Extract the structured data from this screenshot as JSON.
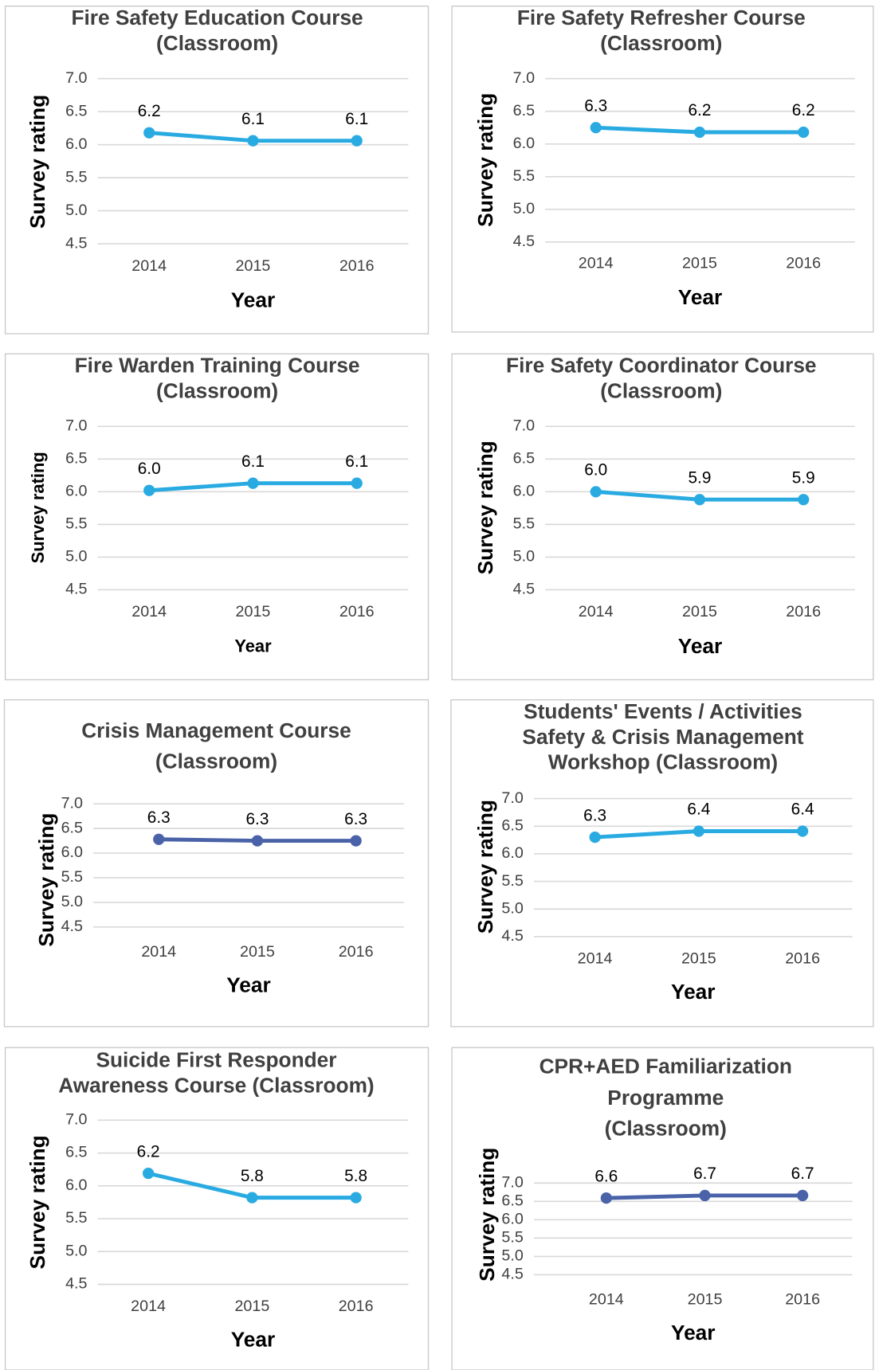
{
  "chart_data": [
    {
      "type": "line",
      "title": [
        "Fire Safety Education Course",
        "(Classroom)"
      ],
      "ylabel": "Survey rating",
      "xlabel": "Year",
      "categories": [
        "2014",
        "2015",
        "2016"
      ],
      "values": [
        6.18,
        6.06,
        6.06
      ],
      "value_labels": [
        "6.2",
        "6.1",
        "6.1"
      ],
      "color": "#29abe2",
      "ylim": [
        4.5,
        7.0
      ],
      "yticks": [
        4.5,
        {
          "value": 5,
          "label": "5.0"
        },
        5.5,
        {
          "value": 6,
          "label": "6.0"
        },
        6.5,
        {
          "value": 7,
          "label": "7.0"
        }
      ],
      "grid": true
    },
    {
      "type": "line",
      "title": [
        "Fire Safety Refresher Course",
        "(Classroom)"
      ],
      "ylabel": "Survey rating",
      "xlabel": "Year",
      "categories": [
        "2014",
        "2015",
        "2016"
      ],
      "values": [
        6.25,
        6.18,
        6.18
      ],
      "value_labels": [
        "6.3",
        "6.2",
        "6.2"
      ],
      "color": "#29abe2",
      "ylim": [
        4.5,
        7.0
      ],
      "yticks": [
        4.5,
        {
          "value": 5,
          "label": "5.0"
        },
        5.5,
        {
          "value": 6,
          "label": "6.0"
        },
        6.5,
        {
          "value": 7,
          "label": "7.0"
        }
      ],
      "grid": true
    },
    {
      "type": "line",
      "title": [
        "Fire Warden Training Course",
        "(Classroom)"
      ],
      "ylabel": "Survey rating",
      "xlabel": "Year",
      "categories": [
        "2014",
        "2015",
        "2016"
      ],
      "values": [
        6.02,
        6.13,
        6.13
      ],
      "value_labels": [
        "6.0",
        "6.1",
        "6.1"
      ],
      "color": "#29abe2",
      "ylim": [
        4.5,
        7.0
      ],
      "yticks": [
        4.5,
        {
          "value": 5,
          "label": "5.0"
        },
        5.5,
        {
          "value": 6,
          "label": "6.0"
        },
        6.5,
        {
          "value": 7,
          "label": "7.0"
        }
      ],
      "grid": true
    },
    {
      "type": "line",
      "title": [
        "Fire Safety Coordinator Course",
        "(Classroom)"
      ],
      "ylabel": "Survey rating",
      "xlabel": "Year",
      "categories": [
        "2014",
        "2015",
        "2016"
      ],
      "values": [
        6.0,
        5.88,
        5.88
      ],
      "value_labels": [
        "6.0",
        "5.9",
        "5.9"
      ],
      "color": "#29abe2",
      "ylim": [
        4.5,
        7.0
      ],
      "yticks": [
        4.5,
        {
          "value": 5,
          "label": "5.0"
        },
        5.5,
        {
          "value": 6,
          "label": "6.0"
        },
        6.5,
        {
          "value": 7,
          "label": "7.0"
        }
      ],
      "grid": true
    },
    {
      "type": "line",
      "title": [
        "Crisis Management Course",
        "(Classroom)"
      ],
      "ylabel": "Survey rating",
      "xlabel": "Year",
      "categories": [
        "2014",
        "2015",
        "2016"
      ],
      "values": [
        6.28,
        6.25,
        6.25
      ],
      "value_labels": [
        "6.3",
        "6.3",
        "6.3"
      ],
      "color": "#4a62a8",
      "ylim": [
        4.5,
        7.0
      ],
      "yticks": [
        4.5,
        {
          "value": 5,
          "label": "5.0"
        },
        5.5,
        {
          "value": 6,
          "label": "6.0"
        },
        6.5,
        {
          "value": 7,
          "label": "7.0"
        }
      ],
      "grid": true
    },
    {
      "type": "line",
      "title": [
        "Students' Events / Activities",
        "Safety & Crisis Management",
        "Workshop (Classroom)"
      ],
      "ylabel": "Survey rating",
      "xlabel": "Year",
      "categories": [
        "2014",
        "2015",
        "2016"
      ],
      "values": [
        6.3,
        6.41,
        6.41
      ],
      "value_labels": [
        "6.3",
        "6.4",
        "6.4"
      ],
      "color": "#29abe2",
      "ylim": [
        4.5,
        7.0
      ],
      "yticks": [
        4.5,
        {
          "value": 5,
          "label": "5.0"
        },
        5.5,
        {
          "value": 6,
          "label": "6.0"
        },
        6.5,
        {
          "value": 7,
          "label": "7.0"
        }
      ],
      "grid": true
    },
    {
      "type": "line",
      "title": [
        "Suicide First Responder",
        "Awareness Course (Classroom)"
      ],
      "ylabel": "Survey rating",
      "xlabel": "Year",
      "categories": [
        "2014",
        "2015",
        "2016"
      ],
      "values": [
        6.19,
        5.82,
        5.82
      ],
      "value_labels": [
        "6.2",
        "5.8",
        "5.8"
      ],
      "color": "#29abe2",
      "ylim": [
        4.5,
        7.0
      ],
      "yticks": [
        4.5,
        {
          "value": 5,
          "label": "5.0"
        },
        5.5,
        {
          "value": 6,
          "label": "6.0"
        },
        6.5,
        {
          "value": 7,
          "label": "7.0"
        }
      ],
      "grid": true
    },
    {
      "type": "line",
      "title": [
        "CPR+AED Familiarization",
        "Programme",
        "(Classroom)"
      ],
      "ylabel": "Survey rating",
      "xlabel": "Year",
      "categories": [
        "2014",
        "2015",
        "2016"
      ],
      "values": [
        6.59,
        6.66,
        6.66
      ],
      "value_labels": [
        "6.6",
        "6.7",
        "6.7"
      ],
      "color": "#4a62a8",
      "ylim": [
        4.5,
        7.0
      ],
      "yticks": [
        4.5,
        {
          "value": 5,
          "label": "5.0"
        },
        5.5,
        {
          "value": 6,
          "label": "6.0"
        },
        6.5,
        {
          "value": 7,
          "label": "7.0"
        }
      ],
      "grid": true
    }
  ]
}
